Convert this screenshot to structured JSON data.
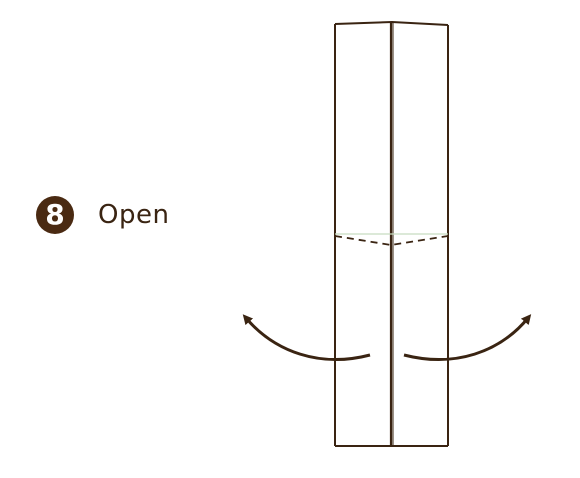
{
  "step": {
    "number": "8",
    "instruction": "Open"
  },
  "colors": {
    "line": "#3a2412",
    "badge": "#4a2a12",
    "crease_hint": "#c8dcc0"
  },
  "icons": {
    "left_arrow": "curved-arrow-up-left-icon",
    "right_arrow": "curved-arrow-up-right-icon"
  }
}
